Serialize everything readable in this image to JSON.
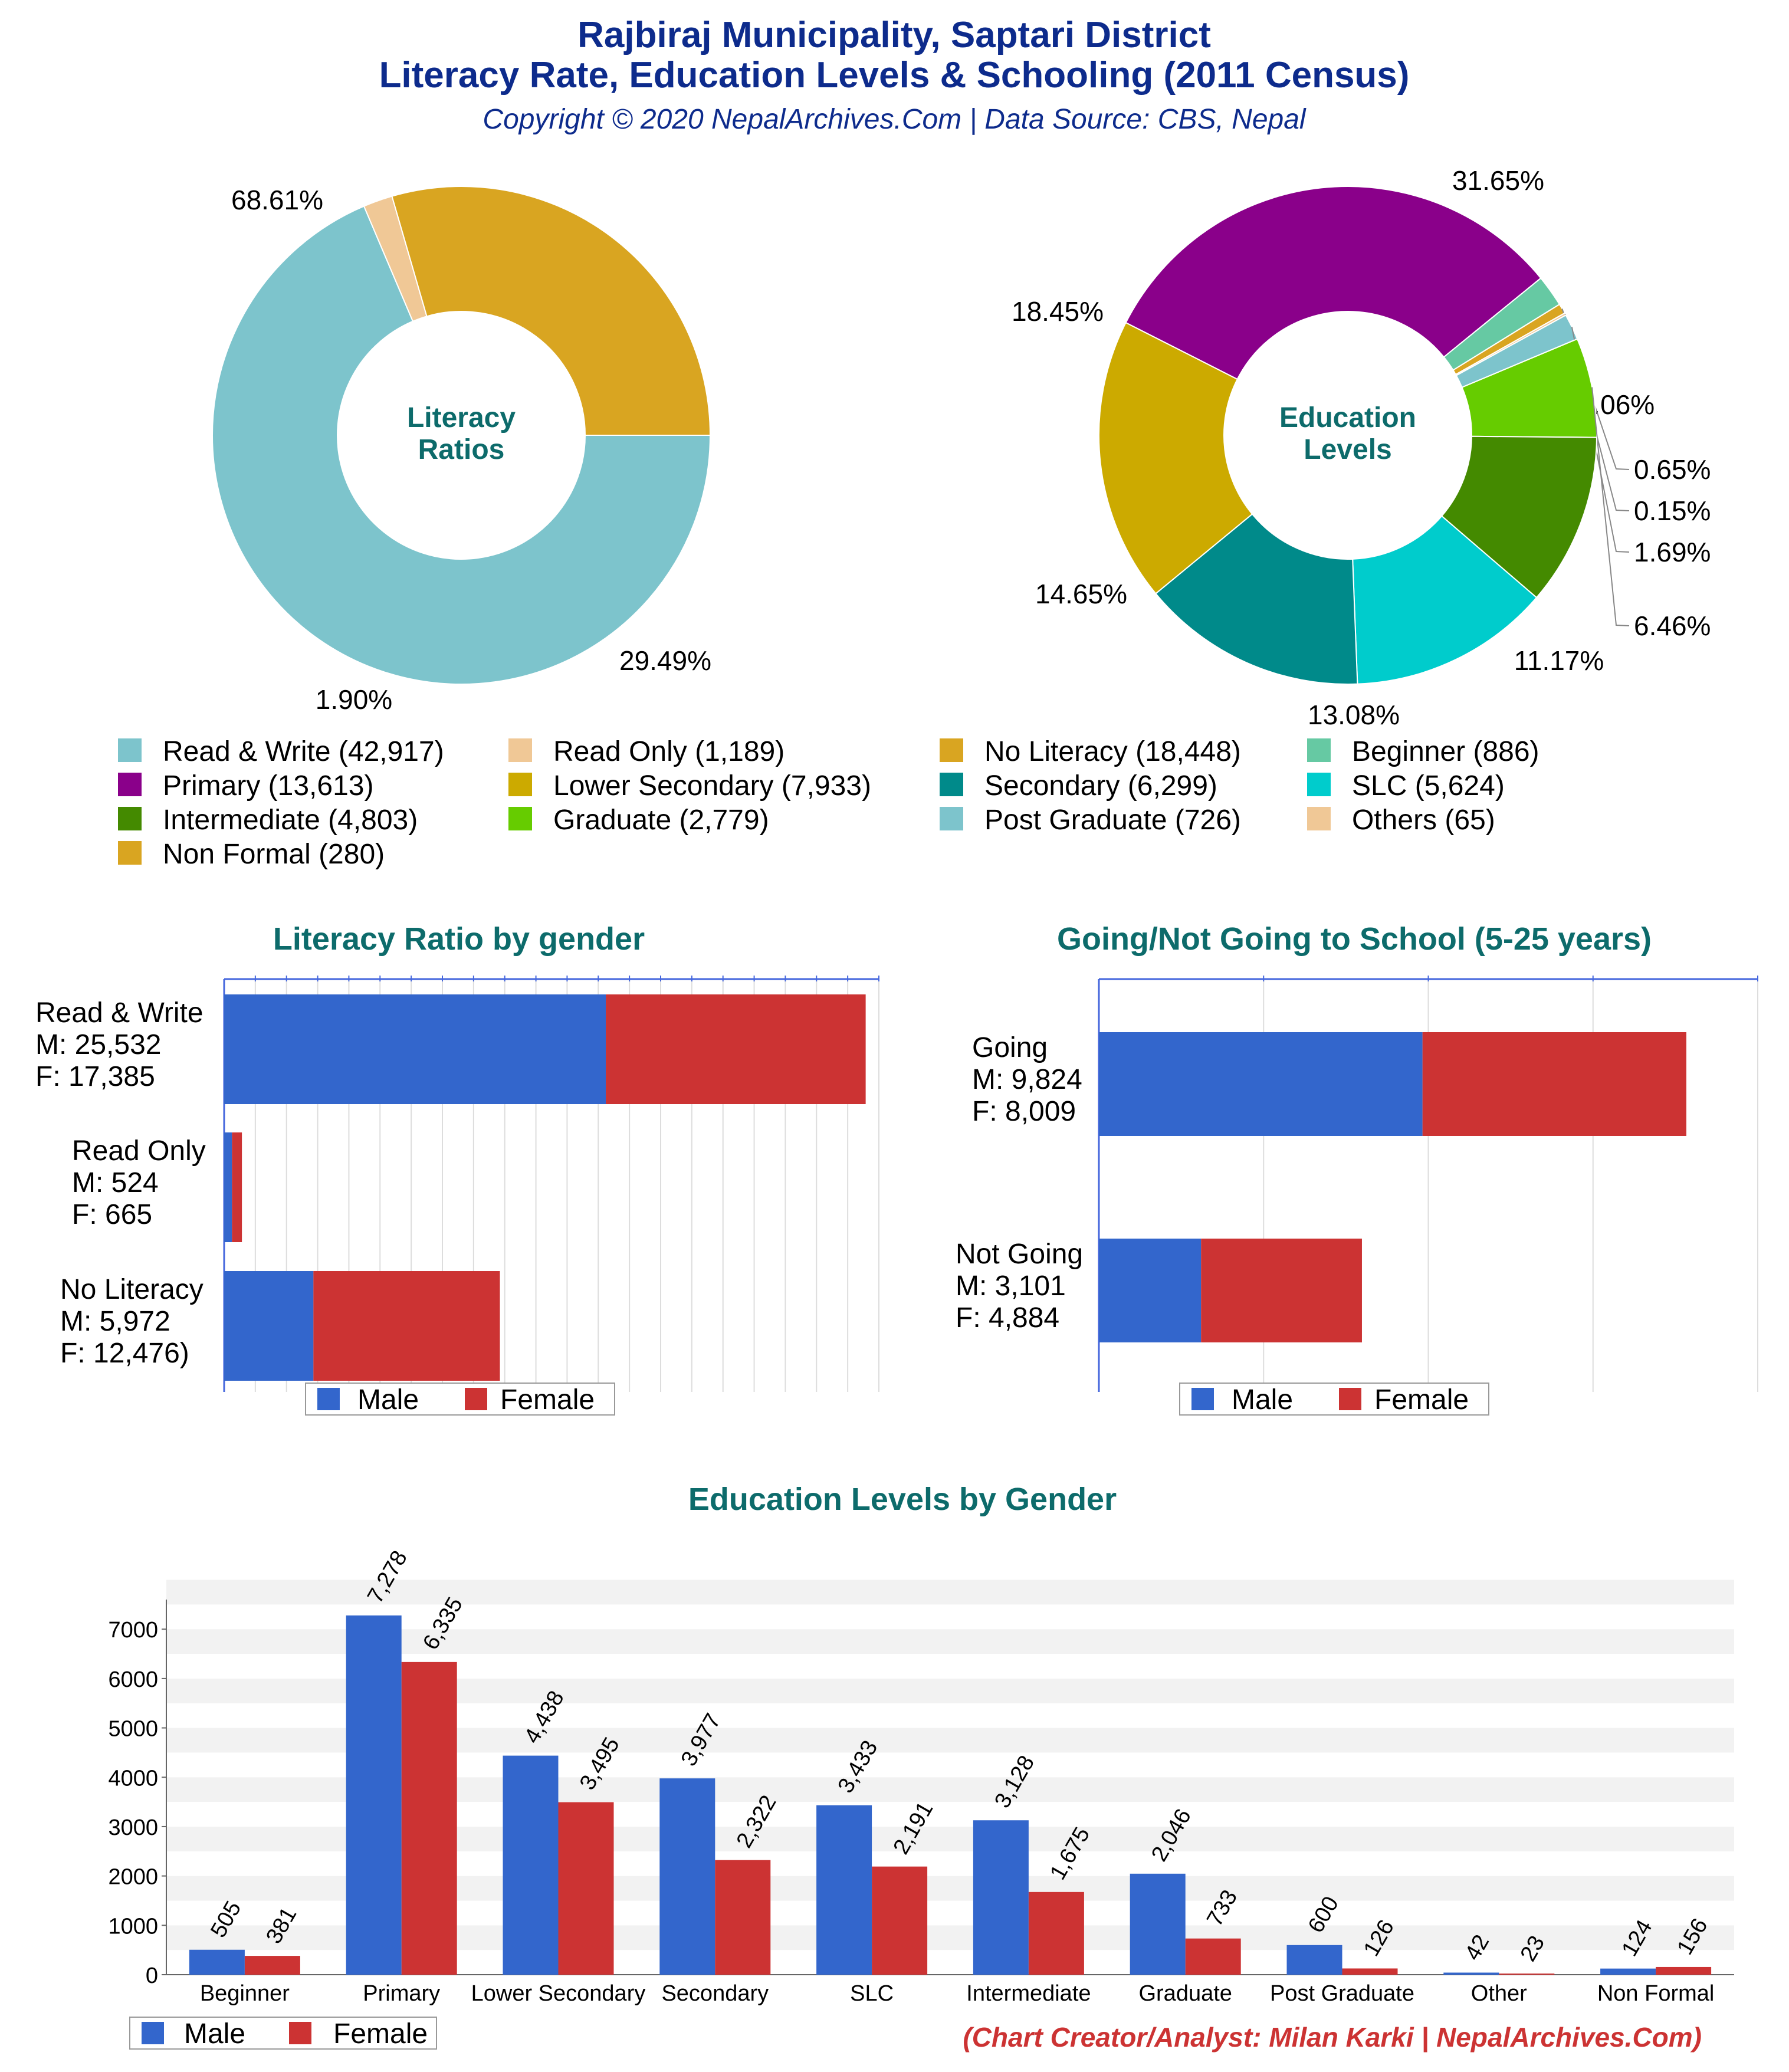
{
  "header": {
    "title_line1": "Rajbiraj Municipality, Saptari District",
    "title_line2": "Literacy Rate, Education Levels & Schooling (2011 Census)",
    "subtitle": "Copyright © 2020 NepalArchives.Com | Data Source: CBS, Nepal"
  },
  "footer": {
    "credit": "(Chart Creator/Analyst: Milan Karki | NepalArchives.Com)"
  },
  "colors": {
    "title": "#0d2b8c",
    "teal_title": "#0d6b6b",
    "male": "#3366cc",
    "female": "#cc3333",
    "credit": "#cc3333"
  },
  "legend_labels": {
    "male": "Male",
    "female": "Female"
  },
  "chart_data": [
    {
      "id": "literacy_ratios",
      "type": "pie",
      "center_label": [
        "Literacy",
        "Ratios"
      ],
      "slices": [
        {
          "label": "Read & Write",
          "value": 42917,
          "percent": "68.61%",
          "color": "#7dc4cc"
        },
        {
          "label": "Read Only",
          "value": 1189,
          "percent": "1.90%",
          "color": "#f0c896"
        },
        {
          "label": "No Literacy",
          "value": 18448,
          "percent": "29.49%",
          "color": "#d9a521"
        }
      ]
    },
    {
      "id": "education_levels",
      "type": "pie",
      "center_label": [
        "Education",
        "Levels"
      ],
      "slices": [
        {
          "label": "Primary",
          "value": 13613,
          "percent": "31.65%",
          "color": "#8a008a"
        },
        {
          "label": "Beginner",
          "value": 886,
          "percent": "2.06%",
          "color": "#66c9a3"
        },
        {
          "label": "Non Formal",
          "value": 280,
          "percent": "0.65%",
          "color": "#d9a521"
        },
        {
          "label": "Others",
          "value": 65,
          "percent": "0.15%",
          "color": "#f0c896"
        },
        {
          "label": "Post Graduate",
          "value": 726,
          "percent": "1.69%",
          "color": "#7dc4cc"
        },
        {
          "label": "Graduate",
          "value": 2779,
          "percent": "6.46%",
          "color": "#66cc00"
        },
        {
          "label": "Intermediate",
          "value": 4803,
          "percent": "11.17%",
          "color": "#448a00"
        },
        {
          "label": "SLC",
          "value": 5624,
          "percent": "13.08%",
          "color": "#00cccc"
        },
        {
          "label": "Secondary",
          "value": 6299,
          "percent": "14.65%",
          "color": "#008a8a"
        },
        {
          "label": "Lower Secondary",
          "value": 7933,
          "percent": "18.45%",
          "color": "#ccaa00"
        }
      ]
    },
    {
      "id": "pie_legend",
      "type": "legend",
      "entries": [
        {
          "text": "Read & Write (42,917)",
          "color": "#7dc4cc"
        },
        {
          "text": "Read Only (1,189)",
          "color": "#f0c896"
        },
        {
          "text": "No Literacy (18,448)",
          "color": "#d9a521"
        },
        {
          "text": "Beginner (886)",
          "color": "#66c9a3"
        },
        {
          "text": "Primary (13,613)",
          "color": "#8a008a"
        },
        {
          "text": "Lower Secondary (7,933)",
          "color": "#ccaa00"
        },
        {
          "text": "Secondary (6,299)",
          "color": "#008a8a"
        },
        {
          "text": "SLC (5,624)",
          "color": "#00cccc"
        },
        {
          "text": "Intermediate (4,803)",
          "color": "#448a00"
        },
        {
          "text": "Graduate (2,779)",
          "color": "#66cc00"
        },
        {
          "text": "Post Graduate (726)",
          "color": "#7dc4cc"
        },
        {
          "text": "Others (65)",
          "color": "#f0c896"
        },
        {
          "text": "Non Formal (280)",
          "color": "#d9a521"
        }
      ]
    },
    {
      "id": "literacy_by_gender",
      "type": "bar",
      "orientation": "horizontal",
      "stacked": true,
      "title": "Literacy Ratio by gender",
      "categories": [
        {
          "lines": [
            "Read & Write",
            "M: 25,532",
            "F: 17,385"
          ],
          "male": 25532,
          "female": 17385
        },
        {
          "lines": [
            "Read Only",
            "M: 524",
            "F: 665"
          ],
          "male": 524,
          "female": 665
        },
        {
          "lines": [
            "No Literacy",
            "M: 5,972",
            "F: 12,476)"
          ],
          "male": 5972,
          "female": 12476
        }
      ],
      "xlim": [
        0,
        43800
      ],
      "grid": true
    },
    {
      "id": "schooling_5_25",
      "type": "bar",
      "orientation": "horizontal",
      "stacked": true,
      "title": "Going/Not Going to School (5-25 years)",
      "categories": [
        {
          "lines": [
            "Going",
            "M: 9,824",
            "F: 8,009"
          ],
          "male": 9824,
          "female": 8009
        },
        {
          "lines": [
            "Not Going",
            "M: 3,101",
            "F: 4,884"
          ],
          "male": 3101,
          "female": 4884
        }
      ],
      "xlim": [
        0,
        20000
      ],
      "grid": true
    },
    {
      "id": "education_by_gender",
      "type": "bar",
      "title": "Education Levels by Gender",
      "categories": [
        "Beginner",
        "Primary",
        "Lower Secondary",
        "Secondary",
        "SLC",
        "Intermediate",
        "Graduate",
        "Post Graduate",
        "Other",
        "Non Formal"
      ],
      "series": [
        {
          "name": "Male",
          "values": [
            505,
            7278,
            4438,
            3977,
            3433,
            3128,
            2046,
            600,
            42,
            124
          ],
          "labels": [
            "505",
            "7,278",
            "4,438",
            "3,977",
            "3,433",
            "3,128",
            "2,046",
            "600",
            "42",
            "124"
          ]
        },
        {
          "name": "Female",
          "values": [
            381,
            6335,
            3495,
            2322,
            2191,
            1675,
            733,
            126,
            23,
            156
          ],
          "labels": [
            "381",
            "6,335",
            "3,495",
            "2,322",
            "2,191",
            "1,675",
            "733",
            "126",
            "23",
            "156"
          ]
        }
      ],
      "yticks": [
        "0",
        "1000",
        "2000",
        "3000",
        "4000",
        "5000",
        "6000",
        "7000"
      ],
      "ylim": [
        0,
        7600
      ],
      "grid": true
    }
  ]
}
